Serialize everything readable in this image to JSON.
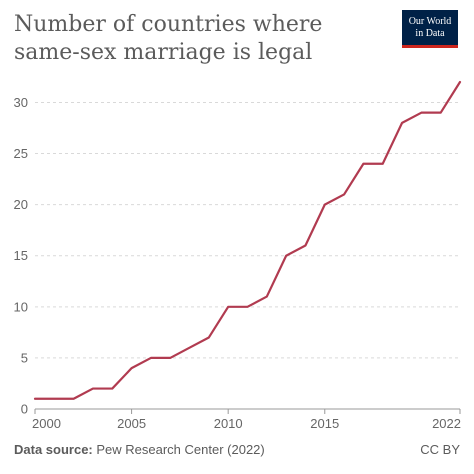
{
  "header": {
    "title_line1": "Number of countries where",
    "title_line2": "same-sex marriage is legal"
  },
  "logo": {
    "line1": "Our World",
    "line2": "in Data",
    "bg_color": "#002147",
    "accent_color": "#ce261e"
  },
  "footer": {
    "source_label": "Data source:",
    "source_value": "Pew Research Center (2022)",
    "license": "CC BY"
  },
  "chart_data": {
    "type": "line",
    "title": "Number of countries where same-sex marriage is legal",
    "xlabel": "",
    "ylabel": "",
    "xlim": [
      2000,
      2022
    ],
    "ylim": [
      0,
      32
    ],
    "y_ticks": [
      0,
      5,
      10,
      15,
      20,
      25,
      30
    ],
    "x_tick_labels": [
      "2000",
      "2005",
      "2010",
      "2015",
      "2022"
    ],
    "x_tick_values": [
      2000,
      2005,
      2010,
      2015,
      2022
    ],
    "grid": "horizontal dashed",
    "line_color": "#b13b50",
    "series": [
      {
        "x": [
          2000,
          2001,
          2002,
          2003,
          2004,
          2005,
          2006,
          2007,
          2008,
          2009,
          2010,
          2011,
          2012,
          2013,
          2014,
          2015,
          2016,
          2017,
          2018,
          2019,
          2020,
          2021,
          2022
        ],
        "values": [
          1,
          1,
          1,
          2,
          2,
          4,
          5,
          5,
          6,
          7,
          10,
          10,
          11,
          15,
          16,
          20,
          21,
          24,
          24,
          28,
          29,
          29,
          32
        ]
      }
    ]
  }
}
